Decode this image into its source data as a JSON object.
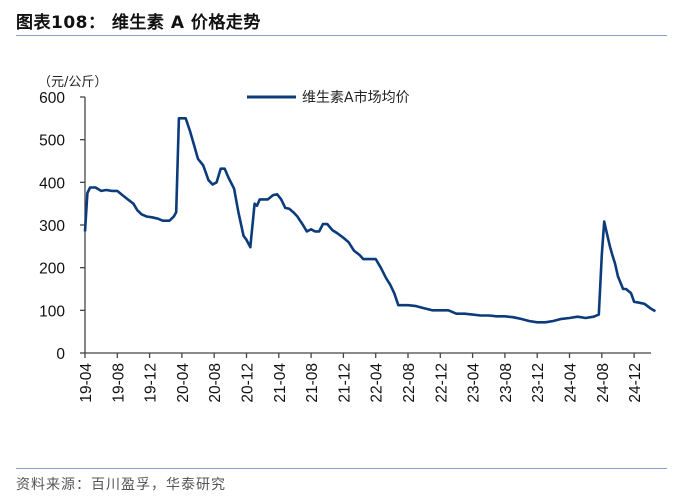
{
  "header": {
    "title": "图表108：  维生素 A 价格走势"
  },
  "footer": {
    "source": "资料来源：百川盈孚，华泰研究"
  },
  "colors": {
    "series": "#0c3b7c",
    "axis": "#444444",
    "rule": "#8aa2c0"
  },
  "chart_data": {
    "type": "line",
    "title": "维生素 A 价格走势",
    "ylabel": "（元/公斤）",
    "xlabel": "",
    "ylim": [
      0,
      600
    ],
    "yticks": [
      0,
      100,
      200,
      300,
      400,
      500,
      600
    ],
    "xticks": [
      "19-04",
      "19-08",
      "19-12",
      "20-04",
      "20-08",
      "20-12",
      "21-04",
      "21-08",
      "21-12",
      "22-04",
      "22-08",
      "22-12",
      "23-04",
      "23-08",
      "23-12",
      "24-04",
      "24-08",
      "24-12"
    ],
    "legend": {
      "position": "top-center",
      "entries": [
        "维生素A市场均价"
      ]
    },
    "grid": false,
    "series": [
      {
        "name": "维生素A市场均价",
        "x": [
          "2019-04-01",
          "2019-04-10",
          "2019-04-20",
          "2019-05-10",
          "2019-06-01",
          "2019-06-20",
          "2019-07-10",
          "2019-08-01",
          "2019-08-20",
          "2019-09-10",
          "2019-10-01",
          "2019-10-15",
          "2019-11-01",
          "2019-11-20",
          "2019-12-10",
          "2020-01-01",
          "2020-01-20",
          "2020-02-15",
          "2020-03-01",
          "2020-03-10",
          "2020-03-20",
          "2020-04-15",
          "2020-05-01",
          "2020-05-15",
          "2020-06-01",
          "2020-06-20",
          "2020-07-10",
          "2020-07-25",
          "2020-08-10",
          "2020-08-25",
          "2020-09-10",
          "2020-09-25",
          "2020-10-15",
          "2020-11-01",
          "2020-11-20",
          "2020-12-01",
          "2020-12-15",
          "2021-01-01",
          "2021-01-10",
          "2021-01-20",
          "2021-02-05",
          "2021-02-20",
          "2021-03-10",
          "2021-03-25",
          "2021-04-10",
          "2021-04-25",
          "2021-05-10",
          "2021-05-25",
          "2021-06-10",
          "2021-06-20",
          "2021-07-01",
          "2021-07-15",
          "2021-08-01",
          "2021-08-15",
          "2021-09-01",
          "2021-09-15",
          "2021-10-01",
          "2021-10-20",
          "2021-11-10",
          "2021-12-01",
          "2021-12-20",
          "2022-01-10",
          "2022-02-01",
          "2022-02-15",
          "2022-03-01",
          "2022-04-01",
          "2022-04-20",
          "2022-05-10",
          "2022-05-25",
          "2022-06-10",
          "2022-06-25",
          "2022-07-10",
          "2022-08-01",
          "2022-09-01",
          "2022-10-01",
          "2022-11-01",
          "2022-12-01",
          "2023-01-01",
          "2023-02-01",
          "2023-03-01",
          "2023-04-01",
          "2023-05-01",
          "2023-06-01",
          "2023-07-01",
          "2023-08-01",
          "2023-09-01",
          "2023-10-01",
          "2023-11-01",
          "2023-12-01",
          "2024-01-01",
          "2024-02-01",
          "2024-03-01",
          "2024-04-01",
          "2024-05-01",
          "2024-06-01",
          "2024-07-01",
          "2024-07-20",
          "2024-08-01",
          "2024-08-10",
          "2024-08-20",
          "2024-09-01",
          "2024-09-10",
          "2024-09-20",
          "2024-10-01",
          "2024-10-20",
          "2024-11-01",
          "2024-11-20",
          "2024-12-01",
          "2024-12-20",
          "2025-01-10",
          "2025-02-01",
          "2025-02-20"
        ],
        "values": [
          285,
          375,
          388,
          388,
          380,
          382,
          380,
          380,
          370,
          360,
          350,
          335,
          325,
          320,
          318,
          315,
          310,
          310,
          320,
          330,
          550,
          550,
          520,
          490,
          455,
          440,
          405,
          395,
          400,
          432,
          432,
          410,
          385,
          330,
          275,
          265,
          248,
          350,
          345,
          360,
          360,
          360,
          370,
          372,
          360,
          340,
          338,
          330,
          320,
          310,
          300,
          285,
          290,
          285,
          285,
          302,
          302,
          288,
          280,
          270,
          260,
          240,
          230,
          220,
          220,
          220,
          200,
          175,
          160,
          140,
          112,
          112,
          112,
          110,
          105,
          100,
          100,
          100,
          92,
          92,
          90,
          88,
          88,
          86,
          86,
          84,
          80,
          75,
          72,
          72,
          75,
          80,
          82,
          85,
          82,
          85,
          90,
          230,
          308,
          280,
          250,
          230,
          210,
          180,
          150,
          150,
          140,
          120,
          118,
          115,
          105,
          98
        ]
      }
    ]
  }
}
